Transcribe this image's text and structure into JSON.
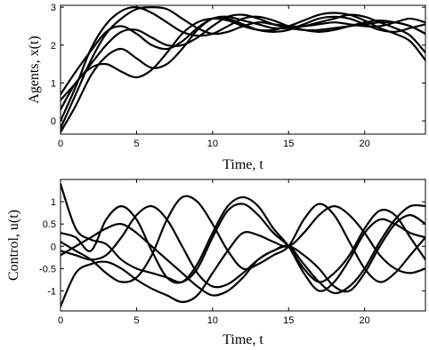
{
  "chart_data": [
    {
      "type": "line",
      "xlabel": "Time, t",
      "ylabel": "Agents, x(t)",
      "xlim": [
        0,
        24
      ],
      "ylim": [
        -0.35,
        3.05
      ],
      "xticks": [
        0,
        5,
        10,
        15,
        20
      ],
      "yticks": [
        0,
        1,
        2,
        3
      ],
      "grid": false,
      "x": [
        0,
        1,
        2,
        3,
        4,
        5,
        6,
        7,
        8,
        9,
        10,
        11,
        12,
        13,
        14,
        15,
        16,
        17,
        18,
        19,
        20,
        21,
        22,
        23,
        24
      ],
      "series": [
        {
          "values": [
            -0.2,
            0.7,
            1.6,
            2.3,
            2.7,
            2.95,
            3.0,
            2.95,
            2.7,
            2.45,
            2.3,
            2.35,
            2.5,
            2.6,
            2.55,
            2.5,
            2.5,
            2.55,
            2.6,
            2.55,
            2.5,
            2.5,
            2.6,
            2.7,
            2.6
          ]
        },
        {
          "values": [
            0.0,
            0.9,
            1.9,
            2.55,
            2.9,
            3.0,
            2.85,
            2.6,
            2.35,
            2.25,
            2.3,
            2.5,
            2.7,
            2.75,
            2.65,
            2.5,
            2.4,
            2.35,
            2.4,
            2.5,
            2.6,
            2.65,
            2.6,
            2.5,
            2.3
          ]
        },
        {
          "values": [
            0.55,
            1.0,
            1.5,
            2.0,
            2.35,
            2.4,
            2.2,
            2.0,
            2.0,
            2.2,
            2.5,
            2.75,
            2.8,
            2.7,
            2.55,
            2.45,
            2.4,
            2.4,
            2.45,
            2.5,
            2.55,
            2.6,
            2.6,
            2.5,
            2.3
          ]
        },
        {
          "values": [
            0.7,
            1.3,
            1.85,
            2.35,
            2.5,
            2.3,
            2.0,
            1.9,
            2.1,
            2.45,
            2.7,
            2.7,
            2.55,
            2.4,
            2.35,
            2.4,
            2.55,
            2.7,
            2.75,
            2.7,
            2.55,
            2.4,
            2.35,
            2.45,
            2.55
          ]
        },
        {
          "values": [
            -0.3,
            0.4,
            1.2,
            1.7,
            1.9,
            1.65,
            1.4,
            1.5,
            1.9,
            2.4,
            2.7,
            2.75,
            2.65,
            2.55,
            2.45,
            2.45,
            2.5,
            2.6,
            2.7,
            2.8,
            2.75,
            2.6,
            2.45,
            2.25,
            1.8
          ]
        },
        {
          "values": [
            0.3,
            1.0,
            1.4,
            1.5,
            1.3,
            1.15,
            1.35,
            1.8,
            2.3,
            2.6,
            2.7,
            2.65,
            2.5,
            2.4,
            2.4,
            2.5,
            2.65,
            2.8,
            2.85,
            2.8,
            2.65,
            2.45,
            2.3,
            2.1,
            1.6
          ]
        }
      ]
    },
    {
      "type": "line",
      "xlabel": "Time, t",
      "ylabel": "Control, u(t)",
      "xlim": [
        0,
        24
      ],
      "ylim": [
        -1.45,
        1.5
      ],
      "xticks": [
        0,
        5,
        10,
        15,
        20
      ],
      "yticks": [
        -1,
        -0.5,
        0,
        0.5,
        1
      ],
      "grid": false,
      "x": [
        0,
        1,
        2,
        3,
        4,
        5,
        6,
        7,
        8,
        9,
        10,
        11,
        12,
        13,
        14,
        15,
        16,
        17,
        18,
        19,
        20,
        21,
        22,
        23,
        24
      ],
      "series": [
        {
          "values": [
            1.4,
            0.4,
            0.15,
            0.05,
            -0.3,
            -0.5,
            -0.6,
            -0.7,
            -0.8,
            -0.5,
            0.2,
            0.8,
            0.95,
            0.7,
            0.3,
            0.0,
            -0.5,
            -0.8,
            -0.6,
            -0.2,
            0.4,
            0.8,
            0.7,
            0.2,
            -0.3
          ]
        },
        {
          "values": [
            -1.35,
            -0.6,
            -0.4,
            -0.35,
            -0.5,
            -0.75,
            -0.95,
            -1.1,
            -1.25,
            -1.1,
            -0.6,
            -0.1,
            0.3,
            0.25,
            0.1,
            0.0,
            0.3,
            0.7,
            0.9,
            0.7,
            0.3,
            -0.2,
            -0.5,
            -0.6,
            -0.5
          ]
        },
        {
          "values": [
            0.3,
            0.2,
            -0.1,
            0.6,
            0.9,
            0.6,
            -0.1,
            -0.7,
            -0.8,
            -0.4,
            0.3,
            0.9,
            1.1,
            0.9,
            0.4,
            0.0,
            -0.6,
            -1.0,
            -0.8,
            -0.3,
            0.3,
            0.6,
            0.5,
            0.3,
            0.2
          ]
        },
        {
          "values": [
            0.1,
            -0.1,
            -0.3,
            -0.6,
            -0.8,
            -0.7,
            -0.2,
            0.6,
            1.1,
            1.0,
            0.5,
            -0.1,
            -0.5,
            -0.4,
            -0.2,
            0.0,
            0.6,
            0.95,
            0.7,
            0.1,
            -0.5,
            -0.8,
            -0.6,
            -0.2,
            0.2
          ]
        },
        {
          "values": [
            -0.1,
            -0.2,
            -0.3,
            -0.2,
            0.2,
            0.7,
            0.9,
            0.6,
            0.0,
            -0.6,
            -0.9,
            -0.85,
            -0.6,
            -0.3,
            -0.1,
            0.0,
            -0.2,
            -0.5,
            -0.9,
            -1.0,
            -0.6,
            0.0,
            0.5,
            0.7,
            0.5
          ]
        },
        {
          "values": [
            -0.2,
            0.0,
            0.2,
            0.4,
            0.5,
            0.3,
            0.0,
            -0.3,
            -0.6,
            -0.9,
            -1.1,
            -1.0,
            -0.7,
            -0.3,
            -0.1,
            0.0,
            -0.4,
            -0.8,
            -1.05,
            -0.9,
            -0.5,
            0.1,
            0.6,
            0.9,
            0.9
          ]
        }
      ]
    }
  ]
}
